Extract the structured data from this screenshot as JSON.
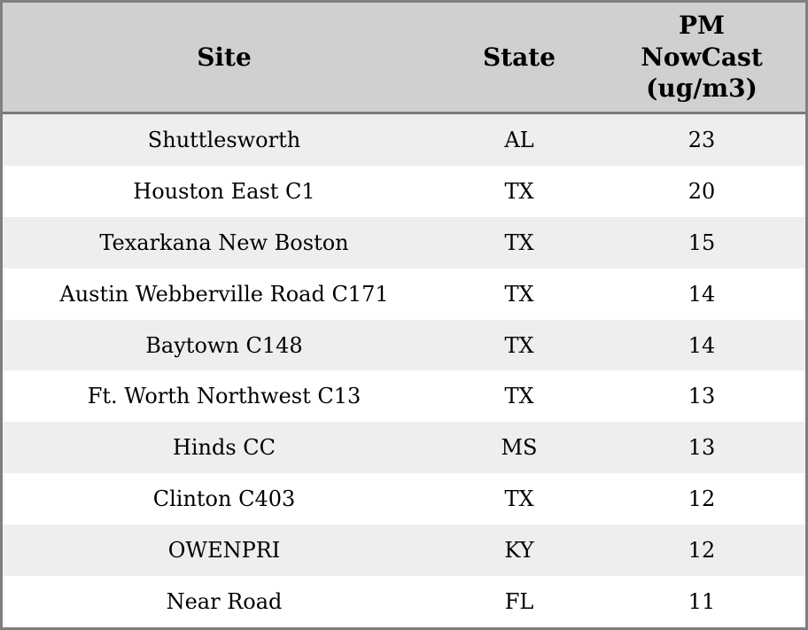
{
  "chart_data": {
    "type": "table",
    "title": "",
    "columns": [
      "Site",
      "State",
      "PM NowCast (ug/m3)"
    ],
    "rows": [
      [
        "Shuttlesworth",
        "AL",
        23
      ],
      [
        "Houston East C1",
        "TX",
        20
      ],
      [
        "Texarkana New Boston",
        "TX",
        15
      ],
      [
        "Austin Webberville Road C171",
        "TX",
        14
      ],
      [
        "Baytown C148",
        "TX",
        14
      ],
      [
        "Ft. Worth Northwest C13",
        "TX",
        13
      ],
      [
        "Hinds CC",
        "MS",
        13
      ],
      [
        "Clinton C403",
        "TX",
        12
      ],
      [
        "OWENPRI",
        "KY",
        12
      ],
      [
        "Near Road",
        "FL",
        11
      ]
    ],
    "layout": {
      "header_background": "#d0d0d0",
      "row_alt_background": "#eeeeee",
      "row_background": "#ffffff",
      "outer_border_color": "#7f7f7f",
      "header_separator_color": "#7a7a7a",
      "text_color": "#000000",
      "alignment": "center"
    }
  }
}
